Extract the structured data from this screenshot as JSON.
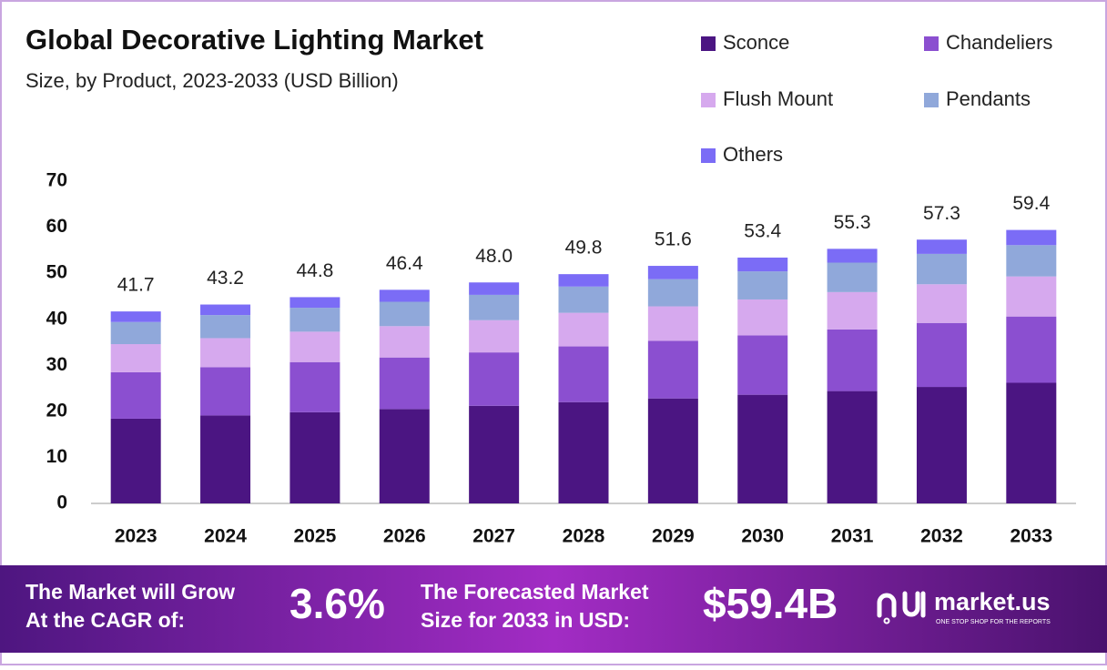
{
  "chart_data": {
    "type": "stacked_bar",
    "title": "Global Decorative Lighting Market",
    "subtitle": "Size, by Product, 2023-2033 (USD Billion)",
    "categories": [
      "2023",
      "2024",
      "2025",
      "2026",
      "2027",
      "2028",
      "2029",
      "2030",
      "2031",
      "2032",
      "2033"
    ],
    "series": [
      {
        "name": "Sconce",
        "color": "#4b1582",
        "values": [
          18.4,
          19.1,
          19.8,
          20.5,
          21.2,
          22.0,
          22.8,
          23.6,
          24.4,
          25.3,
          26.2
        ]
      },
      {
        "name": "Chandeliers",
        "color": "#8b4fd0",
        "values": [
          10.1,
          10.5,
          10.9,
          11.2,
          11.6,
          12.1,
          12.5,
          12.9,
          13.4,
          13.9,
          14.4
        ]
      },
      {
        "name": "Flush Mount",
        "color": "#d6a9ee",
        "values": [
          6.1,
          6.3,
          6.6,
          6.8,
          7.0,
          7.3,
          7.5,
          7.8,
          8.1,
          8.4,
          8.7
        ]
      },
      {
        "name": "Pendants",
        "color": "#90a8da",
        "values": [
          4.8,
          5.0,
          5.2,
          5.3,
          5.5,
          5.7,
          5.9,
          6.1,
          6.4,
          6.6,
          6.8
        ]
      },
      {
        "name": "Others",
        "color": "#7b6cf6",
        "values": [
          2.3,
          2.3,
          2.3,
          2.6,
          2.7,
          2.7,
          2.9,
          3.0,
          3.0,
          3.1,
          3.3
        ]
      }
    ],
    "totals": [
      41.7,
      43.2,
      44.8,
      46.4,
      48.0,
      49.8,
      51.6,
      53.4,
      55.3,
      57.3,
      59.4
    ],
    "total_labels": [
      "41.7",
      "43.2",
      "44.8",
      "46.4",
      "48.0",
      "49.8",
      "51.6",
      "53.4",
      "55.3",
      "57.3",
      "59.4"
    ],
    "ylim": [
      0,
      70
    ],
    "yticks": [
      0,
      10,
      20,
      30,
      40,
      50,
      60,
      70
    ],
    "grid": false
  },
  "footer": {
    "cagr_text": [
      "The Market will Grow",
      "At the CAGR of:"
    ],
    "cagr": "3.6%",
    "forecast_text": [
      "The Forecasted Market",
      "Size for 2033 in USD:"
    ],
    "forecast": "$59.4B",
    "brand": "market.us",
    "tagline": "ONE STOP SHOP FOR THE REPORTS"
  }
}
